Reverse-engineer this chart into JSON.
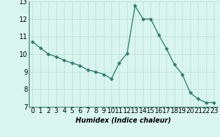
{
  "x": [
    0,
    1,
    2,
    3,
    4,
    5,
    6,
    7,
    8,
    9,
    10,
    11,
    12,
    13,
    14,
    15,
    16,
    17,
    18,
    19,
    20,
    21,
    22,
    23
  ],
  "y": [
    10.7,
    10.35,
    10.0,
    9.85,
    9.65,
    9.5,
    9.35,
    9.1,
    9.0,
    8.85,
    8.6,
    9.5,
    10.05,
    12.75,
    12.0,
    12.0,
    11.1,
    10.3,
    9.4,
    8.85,
    7.8,
    7.45,
    7.25,
    7.25
  ],
  "line_color": "#2e7d6e",
  "marker": "D",
  "marker_size": 2.5,
  "bg_color": "#d9f5f0",
  "grid_color": "#c0ddd8",
  "xlabel": "Humidex (Indice chaleur)",
  "xlabel_fontsize": 7,
  "tick_fontsize": 7,
  "ylim": [
    7,
    13
  ],
  "xlim": [
    -0.5,
    23.5
  ],
  "yticks": [
    7,
    8,
    9,
    10,
    11,
    12,
    13
  ],
  "xticks": [
    0,
    1,
    2,
    3,
    4,
    5,
    6,
    7,
    8,
    9,
    10,
    11,
    12,
    13,
    14,
    15,
    16,
    17,
    18,
    19,
    20,
    21,
    22,
    23
  ],
  "linewidth": 1.0
}
